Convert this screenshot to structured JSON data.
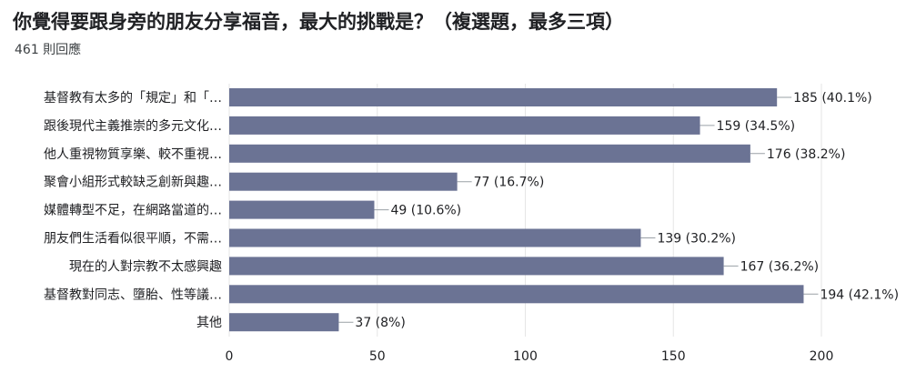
{
  "header": {
    "title": "你覺得要跟身旁的朋友分享福音，最大的挑戰是？（複選題，最多三項）",
    "responses": "461 則回應"
  },
  "colors": {
    "bar": "#6b7394",
    "grid": "#e6e6e6"
  },
  "chart_data": {
    "type": "bar",
    "orientation": "horizontal",
    "categories": [
      "基督教有太多的「規定」和「…",
      "跟後現代主義推崇的多元文化…",
      "他人重視物質享樂、較不重視…",
      "聚會小組形式較缺乏創新與趣…",
      "媒體轉型不足，在網路當道的…",
      "朋友們生活看似很平順，不需…",
      "現在的人對宗教不太感興趣",
      "基督教對同志、墮胎、性等議…",
      "其他"
    ],
    "values": [
      185,
      159,
      176,
      77,
      49,
      139,
      167,
      194,
      37
    ],
    "value_labels": [
      "185 (40.1%)",
      "159 (34.5%)",
      "176 (38.2%)",
      "77 (16.7%)",
      "49 (10.6%)",
      "139 (30.2%)",
      "167 (36.2%)",
      "194 (42.1%)",
      "37 (8%)"
    ],
    "xlim": [
      0,
      200
    ],
    "xticks": [
      0,
      50,
      100,
      150,
      200
    ],
    "xtick_labels": [
      "0",
      "50",
      "100",
      "150",
      "200"
    ],
    "grid": true
  }
}
